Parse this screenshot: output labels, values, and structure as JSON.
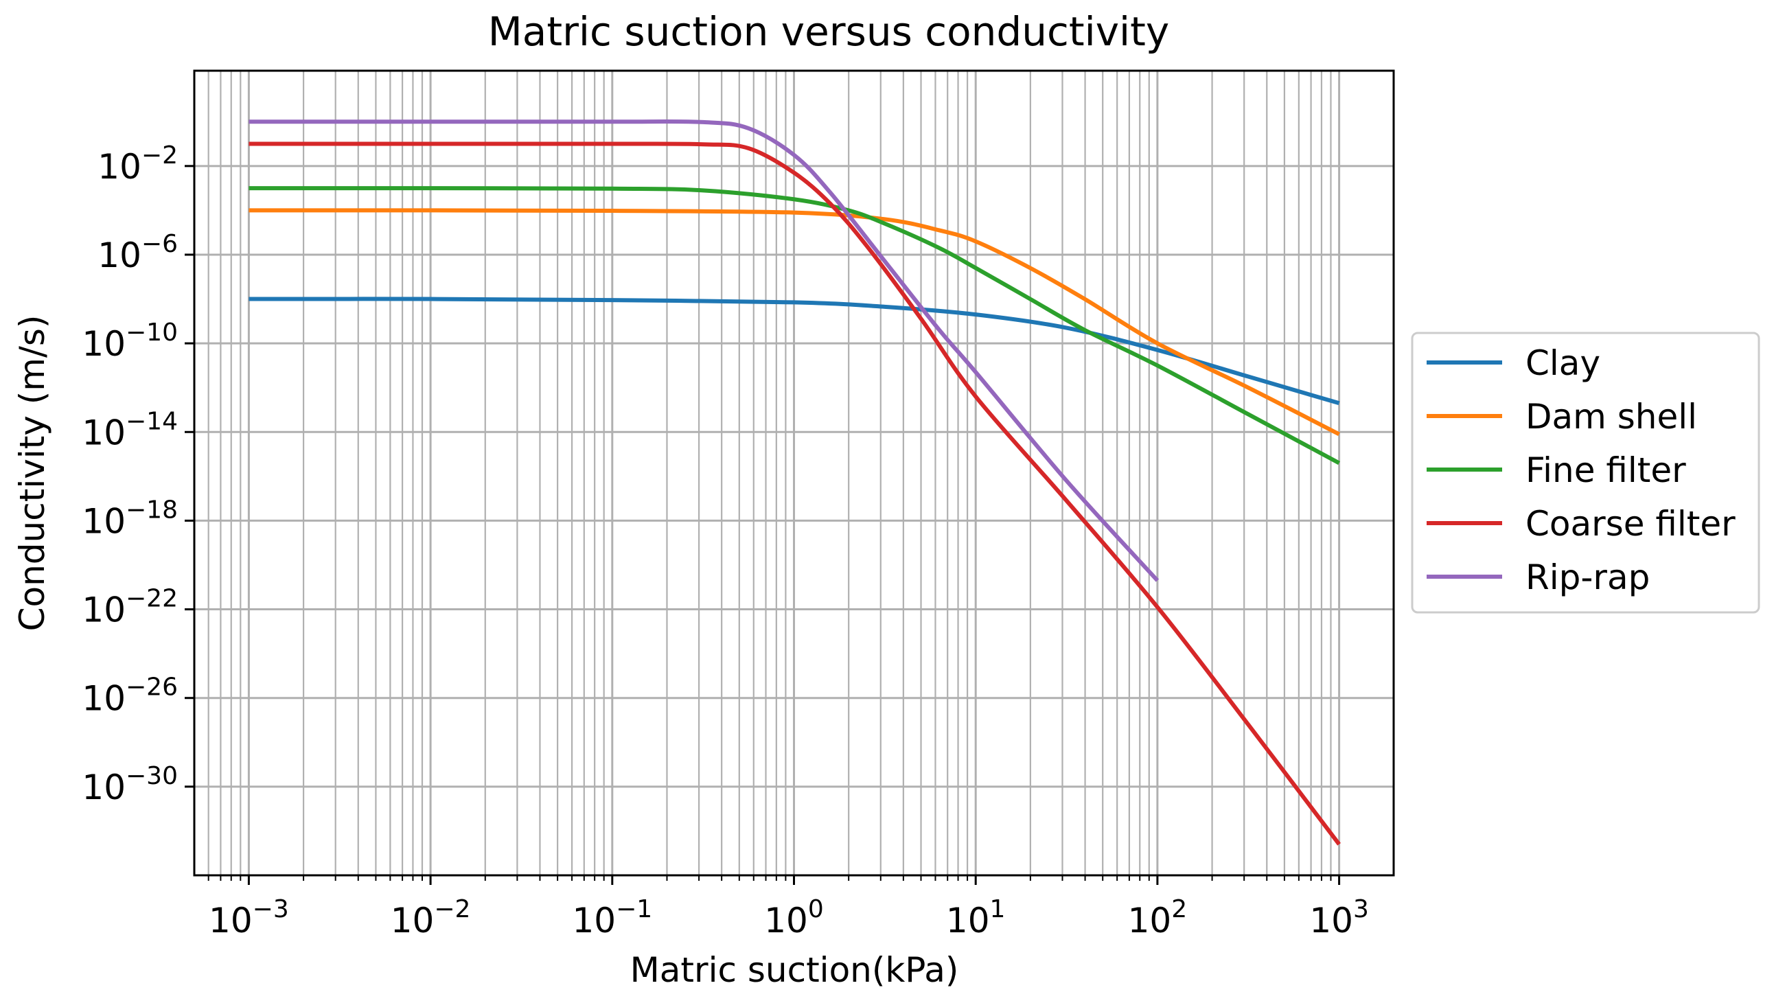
{
  "chart_data": {
    "type": "line",
    "title": "Matric suction versus conductivity",
    "xlabel": "Matric suction(kPa)",
    "ylabel": "Conductivity (m/s)",
    "xscale": "log",
    "yscale": "log",
    "xlim_log10": [
      -3.3,
      3.3
    ],
    "ylim_log10": [
      -34,
      2.3
    ],
    "grid": "both-major-and-minor-x",
    "x_ticks": [
      {
        "base": "10",
        "exp": "−3",
        "log": -3
      },
      {
        "base": "10",
        "exp": "−2",
        "log": -2
      },
      {
        "base": "10",
        "exp": "−1",
        "log": -1
      },
      {
        "base": "10",
        "exp": "0",
        "log": 0
      },
      {
        "base": "10",
        "exp": "1",
        "log": 1
      },
      {
        "base": "10",
        "exp": "2",
        "log": 2
      },
      {
        "base": "10",
        "exp": "3",
        "log": 3
      }
    ],
    "y_ticks": [
      {
        "base": "10",
        "exp": "−2",
        "log": -2
      },
      {
        "base": "10",
        "exp": "−6",
        "log": -6
      },
      {
        "base": "10",
        "exp": "−10",
        "log": -10
      },
      {
        "base": "10",
        "exp": "−14",
        "log": -14
      },
      {
        "base": "10",
        "exp": "−18",
        "log": -18
      },
      {
        "base": "10",
        "exp": "−22",
        "log": -22
      },
      {
        "base": "10",
        "exp": "−26",
        "log": -26
      },
      {
        "base": "10",
        "exp": "−30",
        "log": -30
      }
    ],
    "legend_position": "outside-right",
    "series": [
      {
        "name": "Clay",
        "color": "#1f77b4",
        "log_x": [
          -3,
          -2,
          -1,
          0,
          0.5,
          1,
          1.5,
          2,
          2.5,
          3
        ],
        "log_y": [
          -8,
          -8,
          -8.05,
          -8.15,
          -8.35,
          -8.7,
          -9.3,
          -10.3,
          -11.5,
          -12.7
        ]
      },
      {
        "name": "Dam shell",
        "color": "#ff7f0e",
        "log_x": [
          -3,
          -2,
          -1,
          0,
          0.5,
          0.8,
          1,
          1.3,
          1.6,
          2,
          2.5,
          3
        ],
        "log_y": [
          -4,
          -4,
          -4.02,
          -4.1,
          -4.4,
          -4.9,
          -5.4,
          -6.6,
          -8.0,
          -10.0,
          -12.0,
          -14.1
        ]
      },
      {
        "name": "Fine filter",
        "color": "#2ca02c",
        "log_x": [
          -3,
          -2,
          -1,
          -0.5,
          0,
          0.3,
          0.5,
          0.8,
          1,
          1.3,
          1.6,
          2,
          2.5,
          3
        ],
        "log_y": [
          -3,
          -3,
          -3.02,
          -3.1,
          -3.5,
          -4.0,
          -4.6,
          -5.7,
          -6.6,
          -8.0,
          -9.4,
          -11.0,
          -13.2,
          -15.4
        ]
      },
      {
        "name": "Coarse filter",
        "color": "#d62728",
        "log_x": [
          -3,
          -2,
          -1,
          -0.5,
          -0.25,
          0,
          0.2,
          0.4,
          0.7,
          1,
          1.5,
          2,
          2.5,
          3
        ],
        "log_y": [
          -1,
          -1,
          -1,
          -1.02,
          -1.2,
          -2.3,
          -3.7,
          -5.6,
          -8.9,
          -12.4,
          -17.1,
          -21.9,
          -27.2,
          -32.6
        ]
      },
      {
        "name": "Rip-rap",
        "color": "#9467bd",
        "log_x": [
          -3,
          -2,
          -1,
          -0.5,
          -0.25,
          0,
          0.2,
          0.5,
          0.8,
          1,
          1.5,
          2
        ],
        "log_y": [
          0,
          0,
          0,
          -0.02,
          -0.3,
          -1.5,
          -3.2,
          -6.3,
          -9.4,
          -11.3,
          -16.2,
          -20.7
        ]
      }
    ]
  }
}
